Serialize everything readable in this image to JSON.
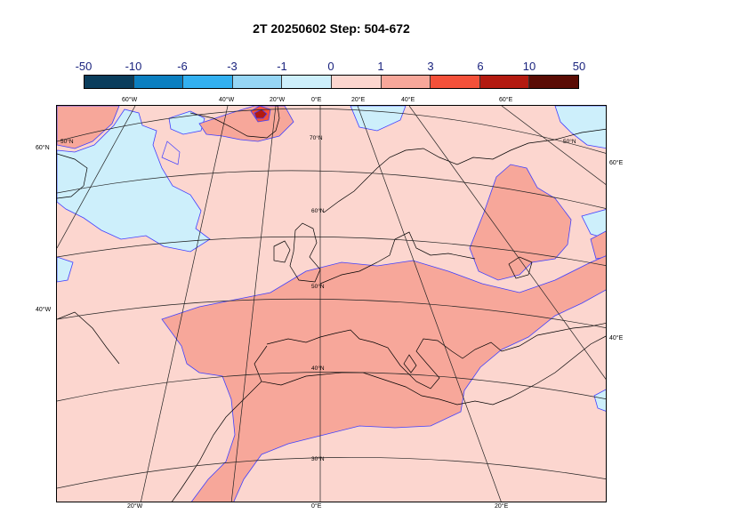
{
  "title": "2T 20250602 Step: 504-672",
  "colorbar": {
    "labels": [
      "-50",
      "-10",
      "-6",
      "-3",
      "-1",
      "0",
      "1",
      "3",
      "6",
      "10",
      "50"
    ],
    "colors": [
      "#0a3d5c",
      "#0b7fc0",
      "#33b0f0",
      "#96d6f5",
      "#cdeffb",
      "#fcd6cf",
      "#f7a79a",
      "#f4513a",
      "#b31a10",
      "#5a0c05"
    ]
  },
  "map": {
    "colors": {
      "land_outline": "#000000",
      "contour": "#4040ff",
      "graticule": "#222222",
      "cold_light": "#cdeffb",
      "warm_light": "#fcd6cf",
      "warm_mid": "#f7a79a",
      "warm_strong": "#f4513a",
      "warm_dark": "#b31a10"
    },
    "top_labels": [
      "60°W",
      "40°W",
      "20°W",
      "0°E",
      "20°E",
      "40°E",
      "60°E"
    ],
    "bottom_labels": [
      "20°W",
      "0°E",
      "20°E"
    ],
    "left_labels": [
      "60°N",
      "40°W"
    ],
    "right_labels": [
      "60°E",
      "40°E"
    ],
    "inner_labels": [
      "70°N",
      "60°N",
      "50°N",
      "40°N",
      "30°N",
      "50°N",
      "50°N"
    ]
  }
}
